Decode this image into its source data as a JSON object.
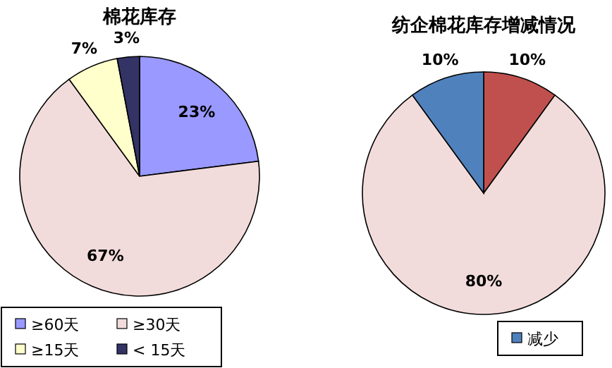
{
  "chart_data": [
    {
      "type": "pie",
      "title": "棉花库存",
      "categories": [
        "≥60天",
        "≥30天",
        "≥15天",
        "< 15天"
      ],
      "values": [
        23,
        67,
        7,
        3
      ],
      "colors": [
        "#9999ff",
        "#f2dcdb",
        "#ffffcc",
        "#333366"
      ],
      "value_labels": [
        "23%",
        "67%",
        "7%",
        "3%"
      ],
      "legend": "bottom"
    },
    {
      "type": "pie",
      "title": "纺企棉花库存增减情况",
      "categories": [
        null,
        null,
        "减少"
      ],
      "values": [
        10,
        80,
        10
      ],
      "colors": [
        "#c0504d",
        "#f2dcdb",
        "#4f81bd"
      ],
      "value_labels": [
        "10%",
        "80%",
        "10%"
      ],
      "legend": "bottom"
    }
  ]
}
